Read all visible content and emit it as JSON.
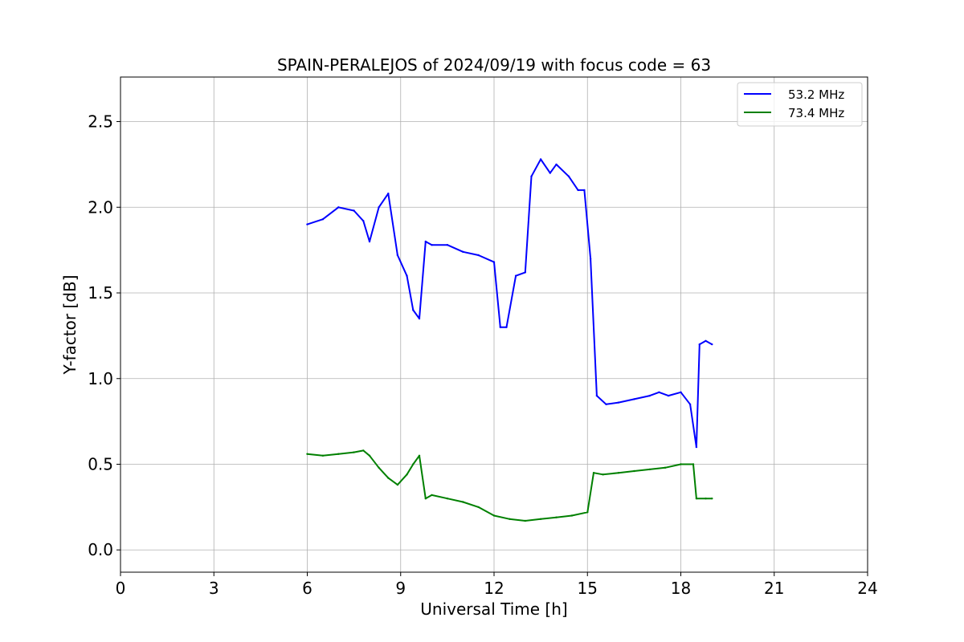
{
  "chart_data": {
    "type": "line",
    "title": "SPAIN-PERALEJOS of 2024/09/19 with focus code = 63",
    "xlabel": "Universal Time [h]",
    "ylabel": "Y-factor [dB]",
    "xlim": [
      0,
      24
    ],
    "ylim": [
      -0.13,
      2.76
    ],
    "xticks": [
      0,
      3,
      6,
      9,
      12,
      15,
      18,
      21,
      24
    ],
    "yticks": [
      0.0,
      0.5,
      1.0,
      1.5,
      2.0,
      2.5
    ],
    "xtick_labels": [
      "0",
      "3",
      "6",
      "9",
      "12",
      "15",
      "18",
      "21",
      "24"
    ],
    "ytick_labels": [
      "0.0",
      "0.5",
      "1.0",
      "1.5",
      "2.0",
      "2.5"
    ],
    "grid": true,
    "legend_position": "top-right",
    "series": [
      {
        "name": "53.2 MHz",
        "color": "#0000ff",
        "x": [
          6.0,
          6.5,
          7.0,
          7.5,
          7.8,
          8.0,
          8.3,
          8.6,
          8.9,
          9.2,
          9.4,
          9.6,
          9.8,
          10.0,
          10.5,
          11.0,
          11.5,
          12.0,
          12.2,
          12.4,
          12.7,
          13.0,
          13.2,
          13.5,
          13.8,
          14.0,
          14.4,
          14.7,
          14.9,
          15.1,
          15.3,
          15.6,
          16.0,
          16.5,
          17.0,
          17.3,
          17.6,
          18.0,
          18.3,
          18.5,
          18.6,
          18.8,
          19.0
        ],
        "y": [
          1.9,
          1.93,
          2.0,
          1.98,
          1.92,
          1.8,
          2.0,
          2.08,
          1.72,
          1.6,
          1.4,
          1.35,
          1.8,
          1.78,
          1.78,
          1.74,
          1.72,
          1.68,
          1.3,
          1.3,
          1.6,
          1.62,
          2.18,
          2.28,
          2.2,
          2.25,
          2.18,
          2.1,
          2.1,
          1.7,
          0.9,
          0.85,
          0.86,
          0.88,
          0.9,
          0.92,
          0.9,
          0.92,
          0.85,
          0.6,
          1.2,
          1.22,
          1.2
        ]
      },
      {
        "name": "73.4 MHz",
        "color": "#008000",
        "x": [
          6.0,
          6.5,
          7.0,
          7.5,
          7.8,
          8.0,
          8.3,
          8.6,
          8.9,
          9.2,
          9.4,
          9.6,
          9.8,
          10.0,
          10.5,
          11.0,
          11.5,
          12.0,
          12.5,
          13.0,
          13.5,
          14.0,
          14.5,
          15.0,
          15.2,
          15.5,
          16.0,
          16.5,
          17.0,
          17.5,
          18.0,
          18.4,
          18.5,
          18.8,
          19.0
        ],
        "y": [
          0.56,
          0.55,
          0.56,
          0.57,
          0.58,
          0.55,
          0.48,
          0.42,
          0.38,
          0.44,
          0.5,
          0.55,
          0.3,
          0.32,
          0.3,
          0.28,
          0.25,
          0.2,
          0.18,
          0.17,
          0.18,
          0.19,
          0.2,
          0.22,
          0.45,
          0.44,
          0.45,
          0.46,
          0.47,
          0.48,
          0.5,
          0.5,
          0.3,
          0.3,
          0.3
        ]
      }
    ]
  }
}
